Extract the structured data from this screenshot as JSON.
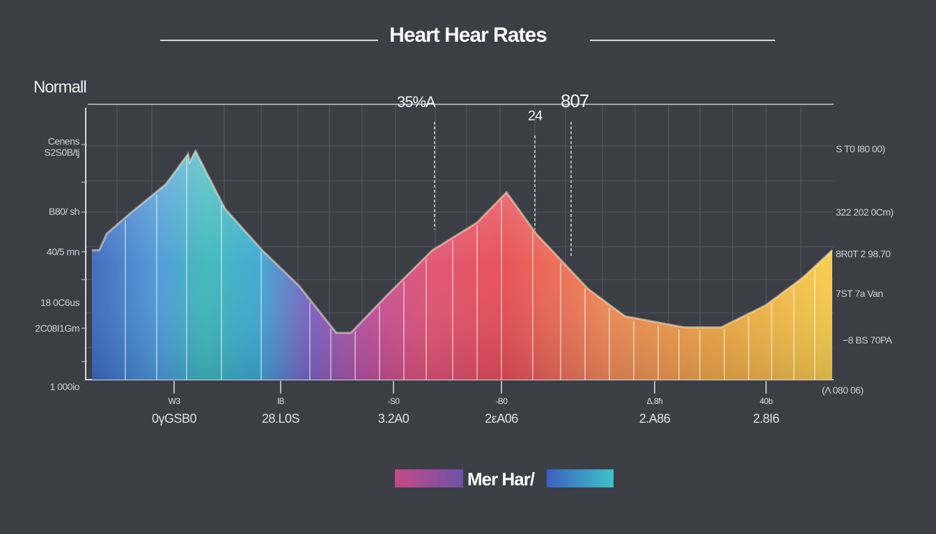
{
  "title": "Heart Hear Rates",
  "subtitle": "Normall",
  "colors": {
    "background": "#3c3e46",
    "blue": "#3a6fc0",
    "teal": "#3bb8c8",
    "purple": "#8a5cc0",
    "pink": "#d04a80",
    "red": "#e04850",
    "orange": "#f0a040",
    "yellow": "#f5c840"
  },
  "chart_data": {
    "type": "area",
    "title": "Heart Hear Rates",
    "grid": true,
    "xlim": [
      0,
      100
    ],
    "ylim": [
      0,
      100
    ],
    "x": [
      0,
      1,
      2,
      5,
      10,
      13,
      13.2,
      14,
      18,
      23,
      28,
      33,
      35,
      40,
      46,
      52,
      56,
      60,
      67,
      72,
      80,
      85,
      91,
      96,
      100
    ],
    "values": [
      47,
      47,
      53,
      60,
      71,
      82,
      79,
      83,
      62,
      47,
      34,
      17,
      17,
      31,
      47,
      57,
      68,
      53,
      33,
      23,
      19,
      19,
      27,
      37,
      47
    ],
    "y_tick_labels_left": [
      "Cenens",
      "S2S0B/tj",
      "B80/ sh",
      "40/5 mn",
      "18 0C6us",
      "2C08I1Gm",
      "1 000io"
    ],
    "y_tick_labels_right": [
      "S T0 I80 00)",
      "322 202 0Cm)",
      "8R0T 2 98.70",
      "7ST 7a Van",
      "−8 BS 70PA",
      "(Λ 080 06)"
    ],
    "x_tick_labels": [
      {
        "top": "W3",
        "bottom": "0γGSB0"
      },
      {
        "top": "IB",
        "bottom": "28.L0S"
      },
      {
        "top": "-S0",
        "bottom": "3.2A0"
      },
      {
        "top": "-B0",
        "bottom": "2εA06"
      },
      {
        "top": "Δ.8ħ",
        "bottom": "2.A86"
      },
      {
        "top": "40b",
        "bottom": "2.8I6"
      }
    ],
    "annotations": [
      "35%A",
      "24",
      "807"
    ],
    "legend": {
      "label": "Mer Har/",
      "placement": "bottom"
    }
  }
}
